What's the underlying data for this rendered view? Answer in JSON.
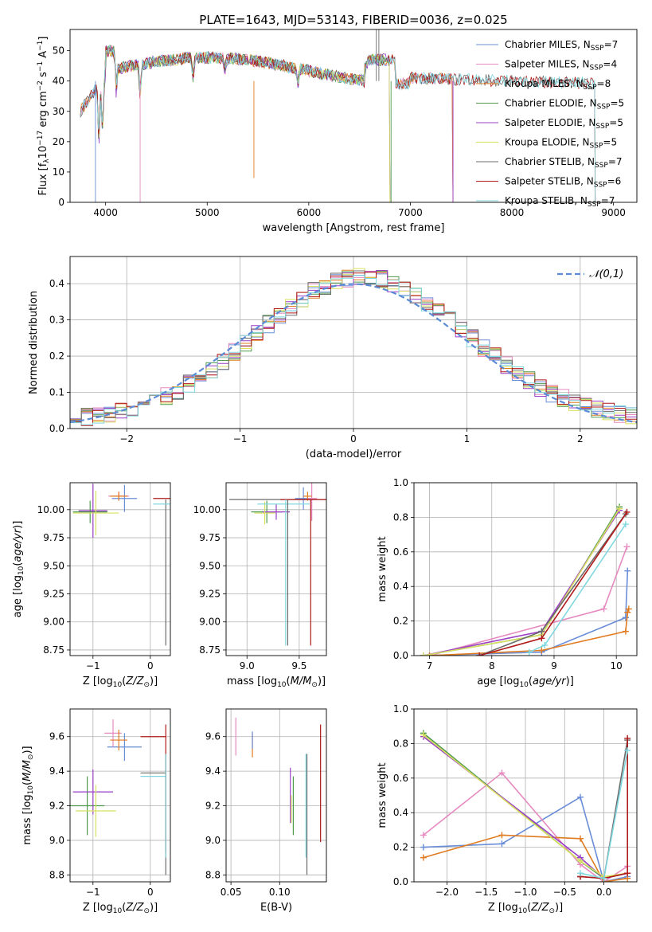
{
  "figure_title": "PLATE=1643, MJD=53143, FIBERID=0036, z=0.025",
  "colors": {
    "c1": "#6a8dd8",
    "c2": "#e68ac0",
    "c3": "#e07b20",
    "c4": "#4f9a4f",
    "c5": "#9a3fc6",
    "c6": "#d8e060",
    "c7": "#6b6b6b",
    "c8": "#b01a1a",
    "c9": "#80d8df",
    "grid": "#b0b0b0",
    "normal": "#5b8bd6"
  },
  "chart_data": [
    {
      "id": "spectrum",
      "type": "line",
      "title": "PLATE=1643, MJD=53143, FIBERID=0036, z=0.025",
      "xlabel": "wavelength [Angstrom, rest frame]",
      "ylabel": "Flux [f_λ 10^-17 erg cm^-2 s^-1 A^-1]",
      "xlim": [
        3650,
        9230
      ],
      "ylim": [
        0,
        57
      ],
      "xticks": [
        4000,
        5000,
        6000,
        7000,
        8000,
        9000
      ],
      "yticks": [
        0,
        10,
        20,
        30,
        40,
        50
      ],
      "grid": false,
      "legend": "top-right",
      "series": [
        {
          "name": "Chabrier MILES, N_SSP=7",
          "color": "#6a8dd8",
          "x0": 3750,
          "x1": 7420
        },
        {
          "name": "Salpeter MILES, N_SSP=4",
          "color": "#e68ac0",
          "x0": 3750,
          "x1": 7420
        },
        {
          "name": "Kroupa MILES, N_SSP=8",
          "color": "#e07b20",
          "x0": 3750,
          "x1": 7420
        },
        {
          "name": "Chabrier ELODIE, N_SSP=5",
          "color": "#4f9a4f",
          "x0": 3900,
          "x1": 6800
        },
        {
          "name": "Salpeter ELODIE, N_SSP=5",
          "color": "#9a3fc6",
          "x0": 3900,
          "x1": 6800
        },
        {
          "name": "Kroupa ELODIE, N_SSP=5",
          "color": "#d8e060",
          "x0": 3900,
          "x1": 6800
        },
        {
          "name": "Chabrier STELIB, N_SSP=7",
          "color": "#6b6b6b",
          "x0": 3750,
          "x1": 8820
        },
        {
          "name": "Salpeter STELIB, N_SSP=6",
          "color": "#b01a1a",
          "x0": 3750,
          "x1": 8820
        },
        {
          "name": "Kroupa STELIB, N_SSP=7",
          "color": "#80d8df",
          "x0": 3750,
          "x1": 8820
        }
      ]
    },
    {
      "id": "residuals",
      "type": "step",
      "xlabel": "(data-model)/error",
      "ylabel": "Normed distribution",
      "xlim": [
        -2.5,
        2.5
      ],
      "ylim": [
        0,
        0.475
      ],
      "xticks": [
        -2,
        -1,
        0,
        1,
        2
      ],
      "yticks": [
        0.0,
        0.1,
        0.2,
        0.3,
        0.4
      ],
      "grid": true,
      "legend": "top-right",
      "reference": {
        "name": "𝒩(0,1)",
        "mu": 0,
        "sigma": 1
      },
      "bins": {
        "start": -2.5,
        "width": 0.1,
        "count": 50
      }
    },
    {
      "id": "age_vs_Z",
      "type": "errorbar",
      "xlabel": "Z [log10(Z/Z⊙)]",
      "ylabel": "age [log10(age/yr)]",
      "xlim": [
        -1.4,
        0.35
      ],
      "ylim": [
        8.7,
        10.24
      ],
      "xticks": [
        -1,
        0
      ],
      "yticks": [
        8.75,
        9.0,
        9.25,
        9.5,
        9.75,
        10.0
      ],
      "grid": true,
      "points": [
        {
          "color": "#6a8dd8",
          "x": -0.45,
          "y": 10.1,
          "xerr": 0.22,
          "yerr": 0.12
        },
        {
          "color": "#e68ac0",
          "x": -0.55,
          "y": 10.12,
          "xerr": 0.18,
          "yerr": 0.04
        },
        {
          "color": "#e07b20",
          "x": -0.55,
          "y": 10.12,
          "xerr": 0.15,
          "yerr": 0.04
        },
        {
          "color": "#4f9a4f",
          "x": -1.05,
          "y": 9.98,
          "xerr": 0.3,
          "yerr": 0.1
        },
        {
          "color": "#9a3fc6",
          "x": -1.0,
          "y": 9.99,
          "xerr": 0.25,
          "yerr": 0.24
        },
        {
          "color": "#d8e060",
          "x": -0.95,
          "y": 9.97,
          "xerr": 0.4,
          "yerr": 0.2
        },
        {
          "color": "#6b6b6b",
          "x": 0.27,
          "y": 9.44,
          "xerr": 0.0,
          "yerr": 0.65
        },
        {
          "color": "#b01a1a",
          "x": 0.27,
          "y": 10.1,
          "xerr": 0.22,
          "yerr": 0.0
        },
        {
          "color": "#80d8df",
          "x": 0.27,
          "y": 10.05,
          "xerr": 0.22,
          "yerr": 0.0
        }
      ]
    },
    {
      "id": "age_vs_mass",
      "type": "errorbar",
      "xlabel": "mass [log10(M/M⊙)]",
      "ylabel": "",
      "xlim": [
        8.8,
        9.76
      ],
      "ylim": [
        8.7,
        10.24
      ],
      "xticks": [
        9.0,
        9.5
      ],
      "yticks": [
        8.75,
        9.0,
        9.25,
        9.5,
        9.75,
        10.0
      ],
      "grid": true,
      "points": [
        {
          "color": "#6a8dd8",
          "x": 9.54,
          "y": 10.1,
          "xerr": 0.08,
          "yerr": 0.1
        },
        {
          "color": "#e68ac0",
          "x": 9.62,
          "y": 10.1,
          "xerr": 0.05,
          "yerr": 0.2
        },
        {
          "color": "#e07b20",
          "x": 9.58,
          "y": 10.12,
          "xerr": 0.04,
          "yerr": 0.04
        },
        {
          "color": "#4f9a4f",
          "x": 9.19,
          "y": 9.98,
          "xerr": 0.15,
          "yerr": 0.1
        },
        {
          "color": "#9a3fc6",
          "x": 9.28,
          "y": 9.98,
          "xerr": 0.13,
          "yerr": 0.07
        },
        {
          "color": "#d8e060",
          "x": 9.17,
          "y": 9.97,
          "xerr": 0.1,
          "yerr": 0.1
        },
        {
          "color": "#6b6b6b",
          "x": 9.39,
          "y": 10.09,
          "xerr": 0.56,
          "yerr": 0.0
        },
        {
          "color": "#b01a1a",
          "x": 9.62,
          "y": 10.09,
          "xerr": 0.3,
          "yerr": 0.0
        },
        {
          "color": "#80d8df",
          "x": 9.35,
          "y": 10.05,
          "xerr": 0.25,
          "yerr": 0.0
        },
        {
          "color": "#6b6b6b",
          "x": 9.39,
          "y": 9.44,
          "xerr": 0.0,
          "yerr": 0.65
        },
        {
          "color": "#b01a1a",
          "x": 9.61,
          "y": 9.44,
          "xerr": 0.0,
          "yerr": 0.65
        },
        {
          "color": "#80d8df",
          "x": 9.37,
          "y": 9.44,
          "xerr": 0.0,
          "yerr": 0.65
        }
      ]
    },
    {
      "id": "mass_weight_vs_age",
      "type": "line",
      "xlabel": "age [log10(age/yr)]",
      "ylabel": "mass weight",
      "xlim": [
        6.75,
        10.33
      ],
      "ylim": [
        0,
        1.0
      ],
      "xticks": [
        7,
        8,
        9,
        10
      ],
      "yticks": [
        0.0,
        0.2,
        0.4,
        0.6,
        0.8,
        1.0
      ],
      "grid": true,
      "series": [
        {
          "color": "#6a8dd8",
          "x": [
            6.9,
            8.8,
            10.15,
            10.18
          ],
          "y": [
            0.0,
            0.02,
            0.22,
            0.49
          ]
        },
        {
          "color": "#e68ac0",
          "x": [
            7.0,
            9.8,
            10.17
          ],
          "y": [
            0.0,
            0.27,
            0.63
          ]
        },
        {
          "color": "#e07b20",
          "x": [
            7.0,
            8.8,
            10.15,
            10.18,
            10.2
          ],
          "y": [
            0.0,
            0.03,
            0.14,
            0.25,
            0.27
          ]
        },
        {
          "color": "#4f9a4f",
          "x": [
            6.9,
            8.8,
            10.05
          ],
          "y": [
            0.0,
            0.12,
            0.86
          ]
        },
        {
          "color": "#9a3fc6",
          "x": [
            6.9,
            8.8,
            10.05
          ],
          "y": [
            0.0,
            0.14,
            0.84
          ]
        },
        {
          "color": "#d8e060",
          "x": [
            6.9,
            8.8,
            10.05
          ],
          "y": [
            0.0,
            0.12,
            0.85
          ]
        },
        {
          "color": "#6b6b6b",
          "x": [
            7.8,
            8.8,
            10.15
          ],
          "y": [
            0.0,
            0.14,
            0.82
          ]
        },
        {
          "color": "#b01a1a",
          "x": [
            7.8,
            8.8,
            10.17
          ],
          "y": [
            0.0,
            0.1,
            0.83
          ]
        },
        {
          "color": "#80d8df",
          "x": [
            8.6,
            8.85,
            10.15
          ],
          "y": [
            0.02,
            0.06,
            0.76
          ]
        }
      ]
    },
    {
      "id": "mass_vs_Z",
      "type": "errorbar",
      "xlabel": "Z [log10(Z/Z⊙)]",
      "ylabel": "mass [log10(M/M⊙)]",
      "xlim": [
        -1.4,
        0.35
      ],
      "ylim": [
        8.76,
        9.76
      ],
      "xticks": [
        -1,
        0
      ],
      "yticks": [
        8.8,
        9.0,
        9.2,
        9.4,
        9.6
      ],
      "grid": true,
      "points": [
        {
          "color": "#6a8dd8",
          "x": -0.45,
          "y": 9.54,
          "xerr": 0.3,
          "yerr": 0.08
        },
        {
          "color": "#e68ac0",
          "x": -0.65,
          "y": 9.62,
          "xerr": 0.15,
          "yerr": 0.08
        },
        {
          "color": "#e07b20",
          "x": -0.55,
          "y": 9.58,
          "xerr": 0.15,
          "yerr": 0.06
        },
        {
          "color": "#4f9a4f",
          "x": -1.1,
          "y": 9.2,
          "xerr": 0.3,
          "yerr": 0.17
        },
        {
          "color": "#9a3fc6",
          "x": -1.0,
          "y": 9.28,
          "xerr": 0.35,
          "yerr": 0.13
        },
        {
          "color": "#d8e060",
          "x": -0.95,
          "y": 9.17,
          "xerr": 0.35,
          "yerr": 0.15
        },
        {
          "color": "#6b6b6b",
          "x": 0.05,
          "y": 9.39,
          "xerr": 0.22,
          "yerr": 0.0
        },
        {
          "color": "#b01a1a",
          "x": 0.05,
          "y": 9.6,
          "xerr": 0.22,
          "yerr": 0.0
        },
        {
          "color": "#80d8df",
          "x": 0.05,
          "y": 9.37,
          "xerr": 0.22,
          "yerr": 0.0
        },
        {
          "color": "#6b6b6b",
          "x": 0.27,
          "y": 9.15,
          "xerr": 0.0,
          "yerr": 0.35
        },
        {
          "color": "#b01a1a",
          "x": 0.27,
          "y": 9.3,
          "xerr": 0.0,
          "yerr": 0.37
        },
        {
          "color": "#80d8df",
          "x": 0.27,
          "y": 9.2,
          "xerr": 0.0,
          "yerr": 0.3
        }
      ]
    },
    {
      "id": "mass_vs_ebv",
      "type": "errorbar",
      "xlabel": "E(B-V)",
      "ylabel": "",
      "xlim": [
        0.045,
        0.148
      ],
      "ylim": [
        8.76,
        9.76
      ],
      "xticks": [
        0.05,
        0.1
      ],
      "yticks": [
        8.8,
        9.0,
        9.2,
        9.4,
        9.6
      ],
      "grid": true,
      "points": [
        {
          "color": "#e68ac0",
          "x": 0.055,
          "y": 9.6,
          "xerr": 0.0,
          "yerr": 0.11
        },
        {
          "color": "#e07b20",
          "x": 0.072,
          "y": 9.55,
          "xerr": 0.0,
          "yerr": 0.07
        },
        {
          "color": "#6a8dd8",
          "x": 0.072,
          "y": 9.58,
          "xerr": 0.0,
          "yerr": 0.05
        },
        {
          "color": "#9a3fc6",
          "x": 0.111,
          "y": 9.26,
          "xerr": 0.0,
          "yerr": 0.16
        },
        {
          "color": "#d8e060",
          "x": 0.112,
          "y": 9.18,
          "xerr": 0.0,
          "yerr": 0.08
        },
        {
          "color": "#4f9a4f",
          "x": 0.114,
          "y": 9.2,
          "xerr": 0.0,
          "yerr": 0.17
        },
        {
          "color": "#6b6b6b",
          "x": 0.128,
          "y": 9.15,
          "xerr": 0.0,
          "yerr": 0.35
        },
        {
          "color": "#80d8df",
          "x": 0.127,
          "y": 9.2,
          "xerr": 0.0,
          "yerr": 0.3
        },
        {
          "color": "#b01a1a",
          "x": 0.142,
          "y": 9.33,
          "xerr": 0.0,
          "yerr": 0.34
        }
      ]
    },
    {
      "id": "mass_weight_vs_Z",
      "type": "line",
      "xlabel": "Z [log10(Z/Z⊙)]",
      "ylabel": "mass weight",
      "xlim": [
        -2.42,
        0.42
      ],
      "ylim": [
        0,
        1.0
      ],
      "xticks": [
        -2.0,
        -1.5,
        -1.0,
        -0.5,
        0.0
      ],
      "yticks": [
        0.0,
        0.2,
        0.4,
        0.6,
        0.8,
        1.0
      ],
      "grid": true,
      "series": [
        {
          "color": "#6a8dd8",
          "x": [
            -2.3,
            -1.3,
            -0.3,
            0.0,
            0.3
          ],
          "y": [
            0.2,
            0.22,
            0.49,
            0.0,
            0.03
          ]
        },
        {
          "color": "#e68ac0",
          "x": [
            -2.3,
            -1.3,
            -0.3,
            0.0,
            0.3
          ],
          "y": [
            0.27,
            0.63,
            0.1,
            0.0,
            0.09
          ]
        },
        {
          "color": "#e07b20",
          "x": [
            -2.3,
            -1.3,
            -0.3,
            0.0,
            0.3
          ],
          "y": [
            0.14,
            0.27,
            0.25,
            0.0,
            0.02
          ]
        },
        {
          "color": "#4f9a4f",
          "x": [
            -2.3,
            -0.3,
            0.0,
            0.3
          ],
          "y": [
            0.86,
            0.12,
            0.02,
            0.05
          ]
        },
        {
          "color": "#9a3fc6",
          "x": [
            -2.3,
            -0.3,
            0.0,
            0.3
          ],
          "y": [
            0.84,
            0.14,
            0.02,
            0.05
          ]
        },
        {
          "color": "#d8e060",
          "x": [
            -2.3,
            -0.3,
            0.0,
            0.3
          ],
          "y": [
            0.85,
            0.12,
            0.03,
            0.05
          ]
        },
        {
          "color": "#6b6b6b",
          "x": [
            -0.3,
            0.0,
            0.3
          ],
          "y": [
            0.03,
            0.02,
            0.82
          ]
        },
        {
          "color": "#b01a1a",
          "x": [
            -0.3,
            0.0,
            0.3,
            0.3
          ],
          "y": [
            0.03,
            0.02,
            0.05,
            0.83
          ]
        },
        {
          "color": "#80d8df",
          "x": [
            -0.3,
            0.0,
            0.3
          ],
          "y": [
            0.05,
            0.02,
            0.76
          ]
        }
      ]
    }
  ]
}
